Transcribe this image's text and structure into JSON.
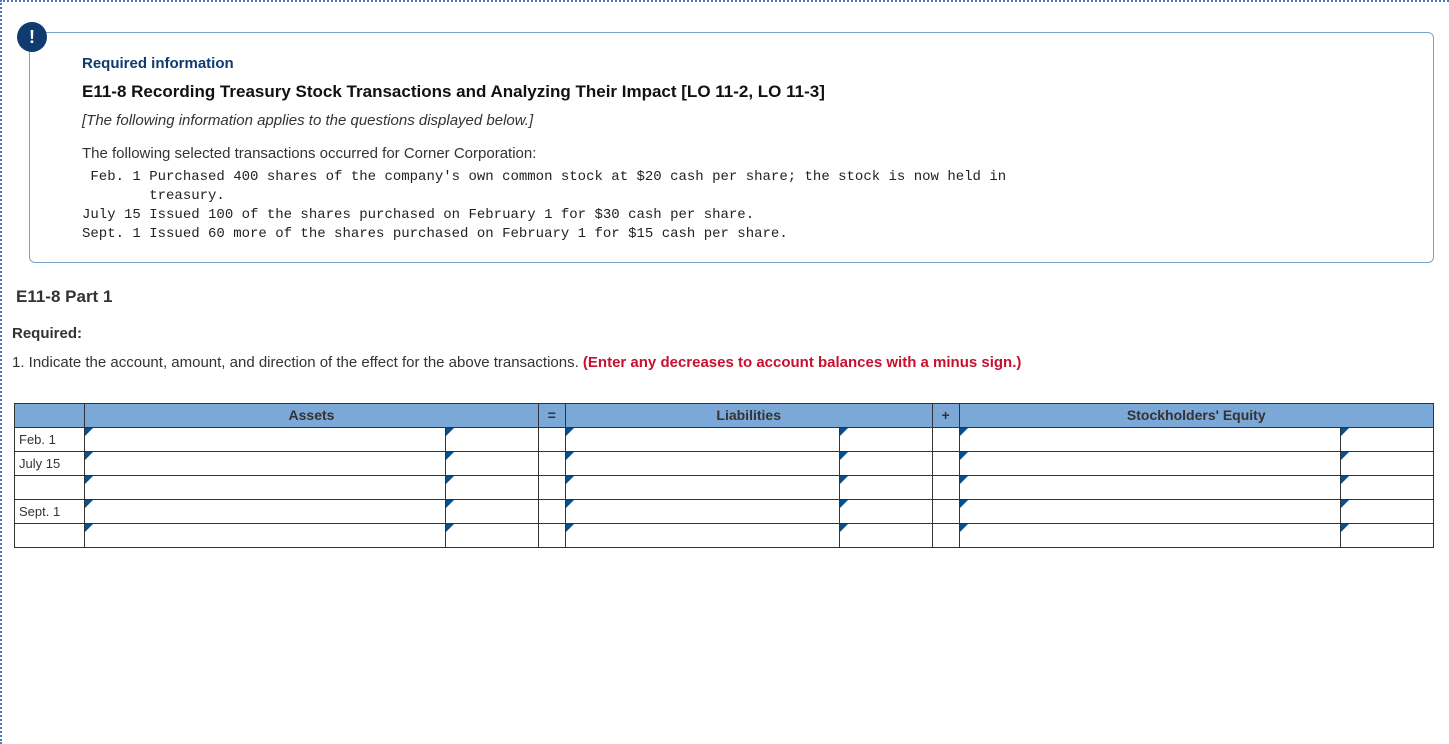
{
  "badge": "!",
  "info": {
    "required_info_label": "Required information",
    "title": "E11-8 Recording Treasury Stock Transactions and Analyzing Their Impact [LO 11-2, LO 11-3]",
    "italic_note": "[The following information applies to the questions displayed below.]",
    "intro": "The following selected transactions occurred for Corner Corporation:",
    "mono": " Feb. 1 Purchased 400 shares of the company's own common stock at $20 cash per share; the stock is now held in\n        treasury.\nJuly 15 Issued 100 of the shares purchased on February 1 for $30 cash per share.\nSept. 1 Issued 60 more of the shares purchased on February 1 for $15 cash per share."
  },
  "part_title": "E11-8 Part 1",
  "required_label": "Required:",
  "instruction_lead": "1. Indicate the account, amount, and direction of the effect for the above transactions. ",
  "instruction_red": "(Enter any decreases to account balances with a minus sign.)",
  "table": {
    "headers": {
      "blank": "",
      "assets": "Assets",
      "eq": "=",
      "liabilities": "Liabilities",
      "plus": "+",
      "se": "Stockholders' Equity"
    },
    "rows": [
      {
        "date": "Feb. 1"
      },
      {
        "date": "July 15"
      },
      {
        "date": ""
      },
      {
        "date": "Sept. 1"
      },
      {
        "date": ""
      }
    ],
    "colors": {
      "header_bg": "#7ba8d6",
      "marker_color": "#0b4f8a",
      "border_color": "#333333"
    }
  }
}
